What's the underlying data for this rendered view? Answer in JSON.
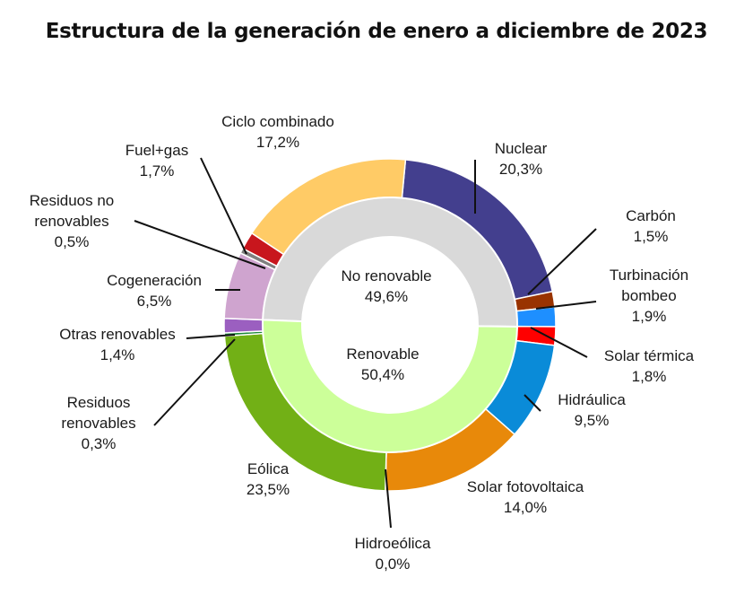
{
  "chart_data": {
    "type": "pie",
    "style": "nested-donut",
    "title": "Estructura de la generación de enero a diciembre de 2023",
    "inner_ring": [
      {
        "name": "No renovable",
        "value": 49.6,
        "value_label": "49,6%",
        "color": "#d9d9d9"
      },
      {
        "name": "Renovable",
        "value": 50.4,
        "value_label": "50,4%",
        "color": "#ccff99"
      }
    ],
    "outer_ring": [
      {
        "name": "Nuclear",
        "value": 20.3,
        "value_label": "20,3%",
        "color": "#433f8e",
        "group": "No renovable"
      },
      {
        "name": "Carbón",
        "value": 1.5,
        "value_label": "1,5%",
        "color": "#993300",
        "group": "No renovable"
      },
      {
        "name": "Turbinación bombeo",
        "value": 1.9,
        "value_label": "1,9%",
        "color": "#1e8fff",
        "group": "No renovable"
      },
      {
        "name": "Solar térmica",
        "value": 1.8,
        "value_label": "1,8%",
        "color": "#ff0000",
        "group": "Renovable"
      },
      {
        "name": "Hidráulica",
        "value": 9.5,
        "value_label": "9,5%",
        "color": "#0a8bd8",
        "group": "Renovable"
      },
      {
        "name": "Solar fotovoltaica",
        "value": 14.0,
        "value_label": "14,0%",
        "color": "#e8890a",
        "group": "Renovable"
      },
      {
        "name": "Hidroeólica",
        "value": 0.0,
        "value_label": "0,0%",
        "color": "#3b6fb5",
        "group": "Renovable"
      },
      {
        "name": "Eólica",
        "value": 23.5,
        "value_label": "23,5%",
        "color": "#72b016",
        "group": "Renovable"
      },
      {
        "name": "Residuos renovables",
        "value": 0.3,
        "value_label": "0,3%",
        "color": "#1f8a3a",
        "group": "Renovable"
      },
      {
        "name": "Otras renovables",
        "value": 1.4,
        "value_label": "1,4%",
        "color": "#9b5fc0",
        "group": "Renovable"
      },
      {
        "name": "Cogeneración",
        "value": 6.5,
        "value_label": "6,5%",
        "color": "#cfa4cf",
        "group": "No renovable"
      },
      {
        "name": "Residuos no renovables",
        "value": 0.5,
        "value_label": "0,5%",
        "color": "#7f7f7f",
        "group": "No renovable"
      },
      {
        "name": "Fuel+gas",
        "value": 1.7,
        "value_label": "1,7%",
        "color": "#c8161d",
        "group": "No renovable"
      },
      {
        "name": "Ciclo combinado",
        "value": 17.2,
        "value_label": "17,2%",
        "color": "#ffcb66",
        "group": "No renovable"
      }
    ]
  },
  "labels": {
    "nuclear": [
      "Nuclear",
      "20,3%"
    ],
    "carbon": [
      "Carbón",
      "1,5%"
    ],
    "turbinacion": [
      "Turbinación",
      "bombeo",
      "1,9%"
    ],
    "solar_termica": [
      "Solar térmica",
      "1,8%"
    ],
    "hidraulica": [
      "Hidráulica",
      "9,5%"
    ],
    "solar_fv": [
      "Solar fotovoltaica",
      "14,0%"
    ],
    "hidroeolica": [
      "Hidroeólica",
      "0,0%"
    ],
    "eolica": [
      "Eólica",
      "23,5%"
    ],
    "residuos_ren": [
      "Residuos",
      "renovables",
      "0,3%"
    ],
    "otras_ren": [
      "Otras renovables",
      "1,4%"
    ],
    "cogeneracion": [
      "Cogeneración",
      "6,5%"
    ],
    "residuos_no_ren": [
      "Residuos no",
      "renovables",
      "0,5%"
    ],
    "fuel_gas": [
      "Fuel+gas",
      "1,7%"
    ],
    "ciclo": [
      "Ciclo combinado",
      "17,2%"
    ],
    "no_renovable": [
      "No renovable",
      "49,6%"
    ],
    "renovable": [
      "Renovable",
      "50,4%"
    ]
  }
}
